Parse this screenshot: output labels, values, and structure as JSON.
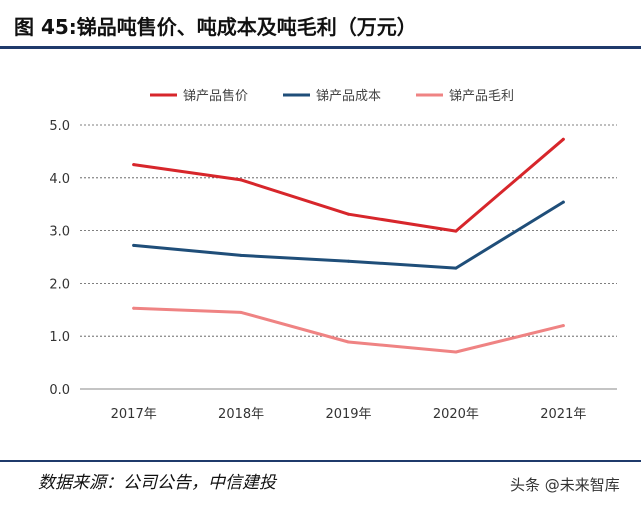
{
  "title": "图 45:锑品吨售价、吨成本及吨毛利（万元）",
  "source": "数据来源：公司公告，中信建投",
  "watermark": "头条 @未来智库",
  "chart_data": {
    "type": "line",
    "categories": [
      "2017年",
      "2018年",
      "2019年",
      "2020年",
      "2021年"
    ],
    "ylim": [
      0,
      5
    ],
    "yticks": [
      "0.0",
      "1.0",
      "2.0",
      "3.0",
      "4.0",
      "5.0"
    ],
    "grid": true,
    "legend_position": "top",
    "series": [
      {
        "name": "锑产品售价",
        "color": "#d7262b",
        "values": [
          4.25,
          3.96,
          3.31,
          2.99,
          4.73
        ]
      },
      {
        "name": "锑产品成本",
        "color": "#1f4e79",
        "values": [
          2.72,
          2.53,
          2.42,
          2.29,
          3.54
        ]
      },
      {
        "name": "锑产品毛利",
        "color": "#ef8383",
        "values": [
          1.53,
          1.45,
          0.89,
          0.7,
          1.2
        ]
      }
    ]
  }
}
